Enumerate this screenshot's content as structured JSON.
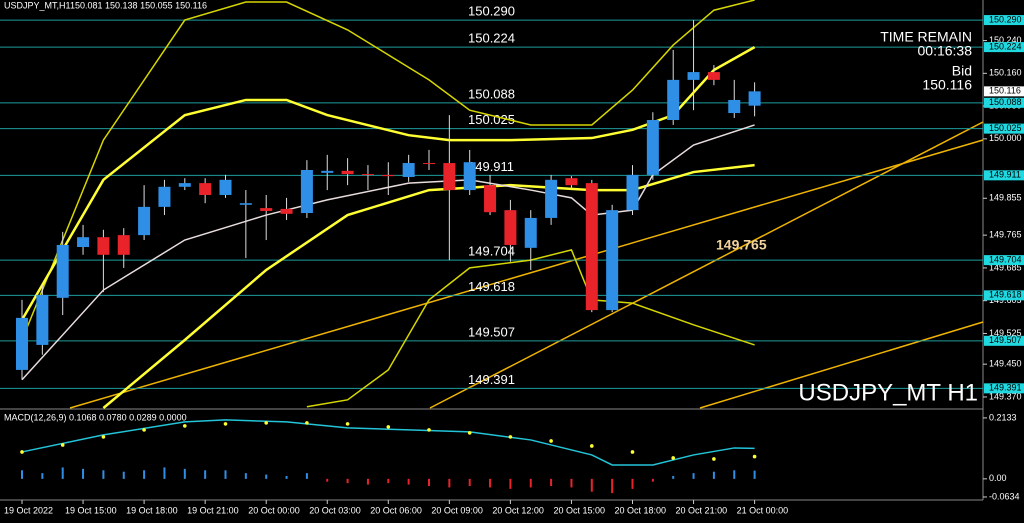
{
  "chart_data": [
    {
      "type": "candlestick",
      "title": "USDJPY_MT,H1",
      "subtitle": "150.081 150.138 150.055 150.116",
      "watermark": "USDJPY_MT H1",
      "annotation": "149.765",
      "timer_label": "TIME REMAIN",
      "timer": "00:16:38",
      "bid_label": "Bid",
      "bid": {
        "value": 150.116,
        "label": "150.116"
      },
      "categories": [
        "19 Oct 2022",
        null,
        null,
        "19 Oct 15:00",
        null,
        null,
        "19 Oct 18:00",
        null,
        null,
        "19 Oct 21:00",
        null,
        null,
        "20 Oct 00:00",
        null,
        null,
        "20 Oct 03:00",
        null,
        null,
        "20 Oct 06:00",
        null,
        null,
        "20 Oct 09:00",
        null,
        null,
        "20 Oct 12:00",
        null,
        null,
        "20 Oct 15:00",
        null,
        null,
        "20 Oct 18:00",
        null,
        null,
        "20 Oct 21:00",
        null,
        null,
        "21 Oct 00:00"
      ],
      "open": [
        149.436,
        149.497,
        149.612,
        149.736,
        149.76,
        149.765,
        149.765,
        149.834,
        149.883,
        149.892,
        149.863,
        149.839,
        149.831,
        149.829,
        149.819,
        149.917,
        149.922,
        149.914,
        149.912,
        149.907,
        149.941,
        149.941,
        149.875,
        149.887,
        149.826,
        149.734,
        149.807,
        149.904,
        149.892,
        149.582,
        149.826,
        149.912,
        150.046,
        150.144,
        150.163,
        150.063,
        150.081
      ],
      "high": [
        149.607,
        149.643,
        149.773,
        149.79,
        149.778,
        149.782,
        149.887,
        149.9,
        149.904,
        149.904,
        149.912,
        149.875,
        149.863,
        149.856,
        149.948,
        149.961,
        149.953,
        149.936,
        149.943,
        149.961,
        149.973,
        150.058,
        149.973,
        149.912,
        149.851,
        149.826,
        149.912,
        149.909,
        149.9,
        149.839,
        149.936,
        150.065,
        150.217,
        150.29,
        150.18,
        150.144,
        150.138
      ],
      "low": [
        149.412,
        149.473,
        149.57,
        149.717,
        149.626,
        149.685,
        149.753,
        149.814,
        149.875,
        149.843,
        149.856,
        149.709,
        149.753,
        149.802,
        149.807,
        149.875,
        149.887,
        149.875,
        149.863,
        149.895,
        149.924,
        149.704,
        149.863,
        149.814,
        149.7,
        149.68,
        149.79,
        149.875,
        149.577,
        149.577,
        149.814,
        149.9,
        150.034,
        150.07,
        150.131,
        150.051,
        150.055
      ],
      "close": [
        149.563,
        149.619,
        149.741,
        149.76,
        149.717,
        149.717,
        149.834,
        149.883,
        149.892,
        149.863,
        149.9,
        149.843,
        149.824,
        149.817,
        149.924,
        149.922,
        149.914,
        149.912,
        149.909,
        149.941,
        149.939,
        149.875,
        149.943,
        149.821,
        149.741,
        149.807,
        149.9,
        149.887,
        149.582,
        149.826,
        149.912,
        150.046,
        150.144,
        150.163,
        150.144,
        150.095,
        150.116
      ],
      "up_color": "#2f8fe6",
      "down_color": "#e8232a",
      "overlays": [
        {
          "color": "#d6d600",
          "width": 1.5,
          "x": [
            0,
            4,
            8,
            11,
            13,
            16,
            20,
            22,
            25,
            28,
            30,
            32,
            34,
            36
          ],
          "values": [
            149.509,
            149.997,
            150.29,
            150.334,
            150.334,
            150.266,
            150.144,
            150.07,
            150.034,
            150.034,
            150.119,
            150.229,
            150.314,
            150.339
          ]
        },
        {
          "color": "#d6d600",
          "width": 1.5,
          "x": [
            14,
            16,
            18,
            20,
            22,
            25,
            27,
            28,
            30,
            33,
            36
          ],
          "values": [
            149.346,
            149.363,
            149.436,
            149.607,
            149.685,
            149.704,
            149.729,
            149.607,
            149.599,
            149.546,
            149.497
          ]
        },
        {
          "color": "#ffff33",
          "width": 2.5,
          "x": [
            0,
            4,
            8,
            11,
            13,
            15,
            19,
            21,
            24,
            28,
            30,
            32,
            34,
            36
          ],
          "values": [
            149.558,
            149.9,
            150.058,
            150.095,
            150.095,
            150.058,
            150.009,
            149.997,
            149.997,
            150.002,
            150.022,
            150.058,
            150.168,
            150.224
          ]
        },
        {
          "color": "#ffff33",
          "width": 2.5,
          "x": [
            4,
            8,
            12,
            16,
            20,
            24,
            28,
            30,
            33,
            36
          ],
          "values": [
            149.343,
            149.509,
            149.68,
            149.814,
            149.875,
            149.887,
            149.875,
            149.875,
            149.919,
            149.936
          ]
        },
        {
          "color": "#e8dcdc",
          "width": 1.5,
          "x": [
            0,
            4,
            8,
            12,
            15,
            19,
            22,
            25,
            27,
            28,
            30,
            31,
            33,
            36
          ],
          "values": [
            149.412,
            149.631,
            149.753,
            149.814,
            149.851,
            149.892,
            149.9,
            149.875,
            149.856,
            149.814,
            149.826,
            149.912,
            149.985,
            150.034
          ]
        }
      ],
      "levels": [
        {
          "value": 150.29,
          "label": "150.290"
        },
        {
          "value": 150.224,
          "label": "150.224"
        },
        {
          "value": 150.088,
          "label": "150.088"
        },
        {
          "value": 150.025,
          "label": "150.025"
        },
        {
          "value": 149.911,
          "label": "149.911"
        },
        {
          "value": 149.704,
          "label": "149.704"
        },
        {
          "value": 149.618,
          "label": "149.618"
        },
        {
          "value": 149.507,
          "label": "149.507"
        },
        {
          "value": 149.391,
          "label": "149.391"
        }
      ],
      "level_color": "#1c9c9c",
      "ylim": [
        149.343,
        150.339
      ],
      "yticks": [
        {
          "value": 150.24,
          "label": "150.240"
        },
        {
          "value": 150.16,
          "label": "150.160"
        },
        {
          "value": 150.08,
          "label": "150.080"
        },
        {
          "value": 150.0,
          "label": "150.000"
        },
        {
          "value": 149.855,
          "label": "149.855"
        },
        {
          "value": 149.765,
          "label": "149.765"
        },
        {
          "value": 149.685,
          "label": "149.685"
        },
        {
          "value": 149.605,
          "label": "149.605"
        },
        {
          "value": 149.525,
          "label": "149.525"
        },
        {
          "value": 149.45,
          "label": "149.450"
        },
        {
          "value": 149.37,
          "label": "149.370"
        }
      ]
    },
    {
      "type": "macd",
      "title": "MACD(12,26,9) 0.1068 0.0780 0.0289 0.0000",
      "values": [
        0.03,
        0.02,
        0.04,
        0.035,
        0.03,
        0.025,
        0.03,
        0.04,
        0.035,
        0.03,
        0.03,
        0.02,
        0.015,
        0.01,
        0.02,
        -0.01,
        -0.015,
        -0.02,
        -0.015,
        -0.02,
        -0.025,
        -0.03,
        -0.025,
        -0.03,
        -0.035,
        -0.03,
        -0.025,
        -0.03,
        -0.045,
        -0.05,
        -0.035,
        -0.01,
        0.01,
        0.02,
        0.025,
        0.03,
        0.0289
      ],
      "up_color": "#2f8fe6",
      "down_color": "#e8232a",
      "main_line": {
        "color": "#23c4d8",
        "x": [
          0,
          4,
          8,
          10,
          13,
          16,
          19,
          22,
          25,
          28,
          29,
          31,
          33,
          35,
          36
        ],
        "values": [
          0.0942,
          0.1538,
          0.1993,
          0.2063,
          0.1993,
          0.1783,
          0.1713,
          0.1643,
          0.1362,
          0.0837,
          0.0487,
          0.0487,
          0.0837,
          0.1082,
          0.1068
        ]
      },
      "signal": {
        "color": "#ffff33",
        "x": [
          0,
          2,
          4,
          6,
          8,
          10,
          12,
          14,
          16,
          18,
          20,
          22,
          24,
          26,
          28,
          30,
          32,
          34,
          36
        ],
        "values": [
          0.0942,
          0.1187,
          0.1468,
          0.1713,
          0.1853,
          0.1923,
          0.1958,
          0.1958,
          0.1923,
          0.1818,
          0.1713,
          0.1608,
          0.1468,
          0.1327,
          0.1152,
          0.0942,
          0.0732,
          0.0697,
          0.078
        ]
      },
      "ylim": [
        -0.074,
        0.241
      ],
      "yticks": [
        {
          "value": 0.2133,
          "label": "0.2133"
        },
        {
          "value": 0,
          "label": "0.00"
        },
        {
          "value": -0.0634,
          "label": "-0.0634"
        }
      ]
    }
  ]
}
